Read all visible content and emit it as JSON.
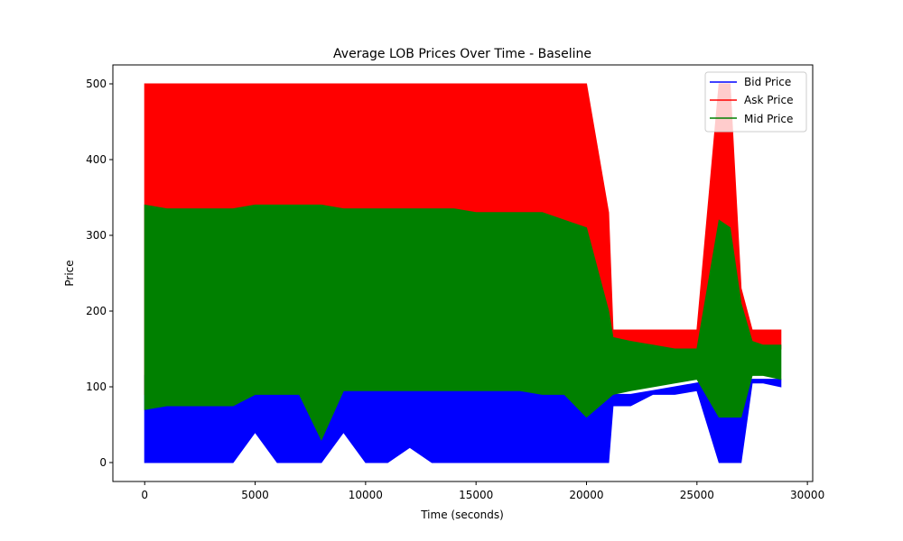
{
  "chart_data": {
    "type": "line",
    "title": "Average LOB Prices Over Time - Baseline",
    "xlabel": "Time (seconds)",
    "ylabel": "Price",
    "xlim": [
      -1440,
      30240
    ],
    "ylim": [
      -25,
      525
    ],
    "xticks": [
      0,
      5000,
      10000,
      15000,
      20000,
      25000,
      30000
    ],
    "yticks": [
      0,
      100,
      200,
      300,
      400,
      500
    ],
    "grid": false,
    "legend_position": "top-right",
    "series": [
      {
        "name": "Bid Price",
        "color": "#0000ff",
        "x": [
          0,
          1000,
          2000,
          3000,
          4000,
          5000,
          6000,
          7000,
          8000,
          9000,
          10000,
          11000,
          12000,
          13000,
          14000,
          15000,
          16000,
          17000,
          18000,
          19000,
          20000,
          21000,
          21200,
          22000,
          23000,
          24000,
          25000,
          26000,
          26500,
          27000,
          27500,
          28000,
          28800
        ],
        "low": [
          0,
          0,
          0,
          0,
          0,
          40,
          0,
          0,
          0,
          40,
          0,
          0,
          20,
          0,
          0,
          0,
          0,
          0,
          0,
          0,
          0,
          0,
          75,
          75,
          90,
          90,
          95,
          0,
          0,
          0,
          105,
          105,
          100
        ],
        "high": [
          115,
          110,
          110,
          110,
          110,
          115,
          115,
          115,
          120,
          120,
          120,
          120,
          120,
          120,
          120,
          120,
          120,
          120,
          120,
          120,
          120,
          120,
          90,
          90,
          95,
          100,
          105,
          110,
          110,
          110,
          110,
          110,
          110
        ]
      },
      {
        "name": "Ask Price",
        "color": "#ff0000",
        "x": [
          0,
          1000,
          2000,
          3000,
          4000,
          5000,
          6000,
          7000,
          8000,
          9000,
          10000,
          11000,
          12000,
          13000,
          14000,
          15000,
          16000,
          17000,
          18000,
          19000,
          20000,
          21000,
          21200,
          22000,
          23000,
          24000,
          25000,
          26000,
          26500,
          27000,
          27500,
          28000,
          28800
        ],
        "low": [
          90,
          95,
          95,
          95,
          95,
          100,
          100,
          100,
          100,
          100,
          100,
          100,
          100,
          100,
          100,
          100,
          100,
          100,
          100,
          100,
          100,
          100,
          150,
          150,
          145,
          145,
          150,
          150,
          150,
          150,
          150,
          150,
          150
        ],
        "high": [
          500,
          500,
          500,
          500,
          500,
          500,
          500,
          500,
          500,
          500,
          500,
          500,
          500,
          500,
          500,
          500,
          500,
          500,
          500,
          500,
          500,
          330,
          175,
          175,
          175,
          175,
          175,
          500,
          500,
          230,
          175,
          175,
          175
        ]
      },
      {
        "name": "Mid Price",
        "color": "#008000",
        "x": [
          0,
          1000,
          2000,
          3000,
          4000,
          5000,
          6000,
          7000,
          8000,
          9000,
          10000,
          11000,
          12000,
          13000,
          14000,
          15000,
          16000,
          17000,
          18000,
          19000,
          20000,
          21000,
          21200,
          22000,
          23000,
          24000,
          25000,
          26000,
          26500,
          27000,
          27500,
          28000,
          28800
        ],
        "low": [
          70,
          75,
          75,
          75,
          75,
          90,
          90,
          90,
          30,
          95,
          95,
          95,
          95,
          95,
          95,
          95,
          95,
          95,
          90,
          90,
          60,
          85,
          90,
          95,
          100,
          105,
          110,
          60,
          60,
          60,
          115,
          115,
          110
        ],
        "high": [
          340,
          335,
          335,
          335,
          335,
          340,
          340,
          340,
          340,
          335,
          335,
          335,
          335,
          335,
          335,
          330,
          330,
          330,
          330,
          320,
          310,
          200,
          165,
          160,
          155,
          150,
          150,
          320,
          310,
          210,
          160,
          155,
          155
        ]
      }
    ]
  }
}
